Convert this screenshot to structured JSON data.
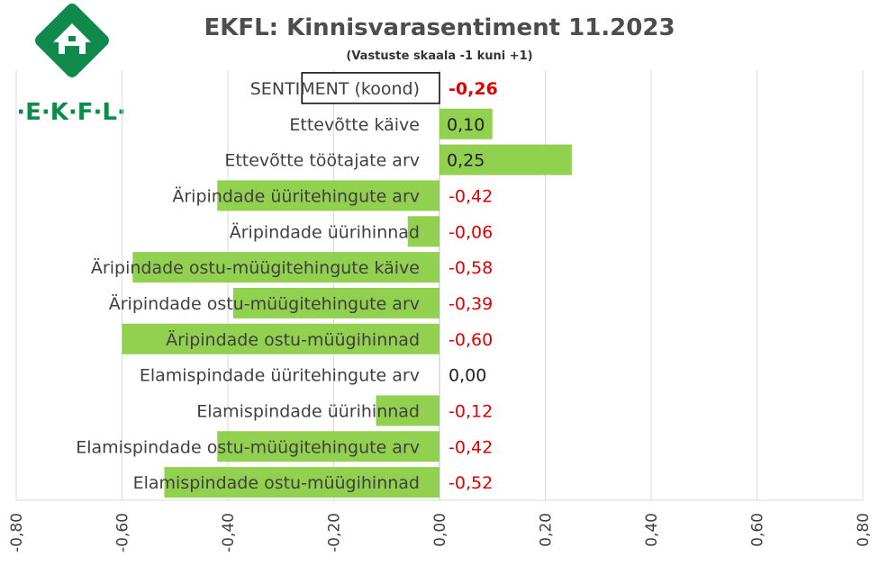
{
  "colors": {
    "bar": "#92d050",
    "negative_value": "#e00000",
    "positive_value": "#222222",
    "grid": "#d9d9d9",
    "logo_green": "#0f8a4a"
  },
  "logo": {
    "text": "·E·K·F·L·",
    "icon": "ekfl-house-logo-icon"
  },
  "chart_data": {
    "type": "bar",
    "orientation": "horizontal",
    "title": "EKFL: Kinnisvarasentiment 11.2023",
    "subtitle": "(Vastuste skaala -1 kuni +1)",
    "xlim": [
      -0.8,
      0.8
    ],
    "grid": true,
    "categories": [
      "SENTIMENT (koond)",
      "Ettevõtte käive",
      "Ettevõtte töötajate arv",
      "Äripindade üüritehingute arv",
      "Äripindade üürihinnad",
      "Äripindade ostu-müügitehingute käive",
      "Äripindade ostu-müügitehingute arv",
      "Äripindade ostu-müügihinnad",
      "Elamispindade üüritehingute arv",
      "Elamispindade üürihinnad",
      "Elamispindade ostu-müügitehingute arv",
      "Elamispindade ostu-müügihinnad"
    ],
    "values": [
      -0.26,
      0.1,
      0.25,
      -0.42,
      -0.06,
      -0.58,
      -0.39,
      -0.6,
      0.0,
      -0.12,
      -0.42,
      -0.52
    ],
    "value_labels": [
      "-0,26",
      "0,10",
      "0,25",
      "-0,42",
      "-0,06",
      "-0,58",
      "-0,39",
      "-0,60",
      "0,00",
      "-0,12",
      "-0,42",
      "-0,52"
    ],
    "highlight_category": "SENTIMENT (koond)",
    "tick_values": [
      -0.8,
      -0.6,
      -0.4,
      -0.2,
      0.0,
      0.2,
      0.4,
      0.6,
      0.8
    ],
    "tick_labels": [
      "-0,80",
      "-0,60",
      "-0,40",
      "-0,20",
      "0,00",
      "0,20",
      "0,40",
      "0,60",
      "0,80"
    ]
  }
}
